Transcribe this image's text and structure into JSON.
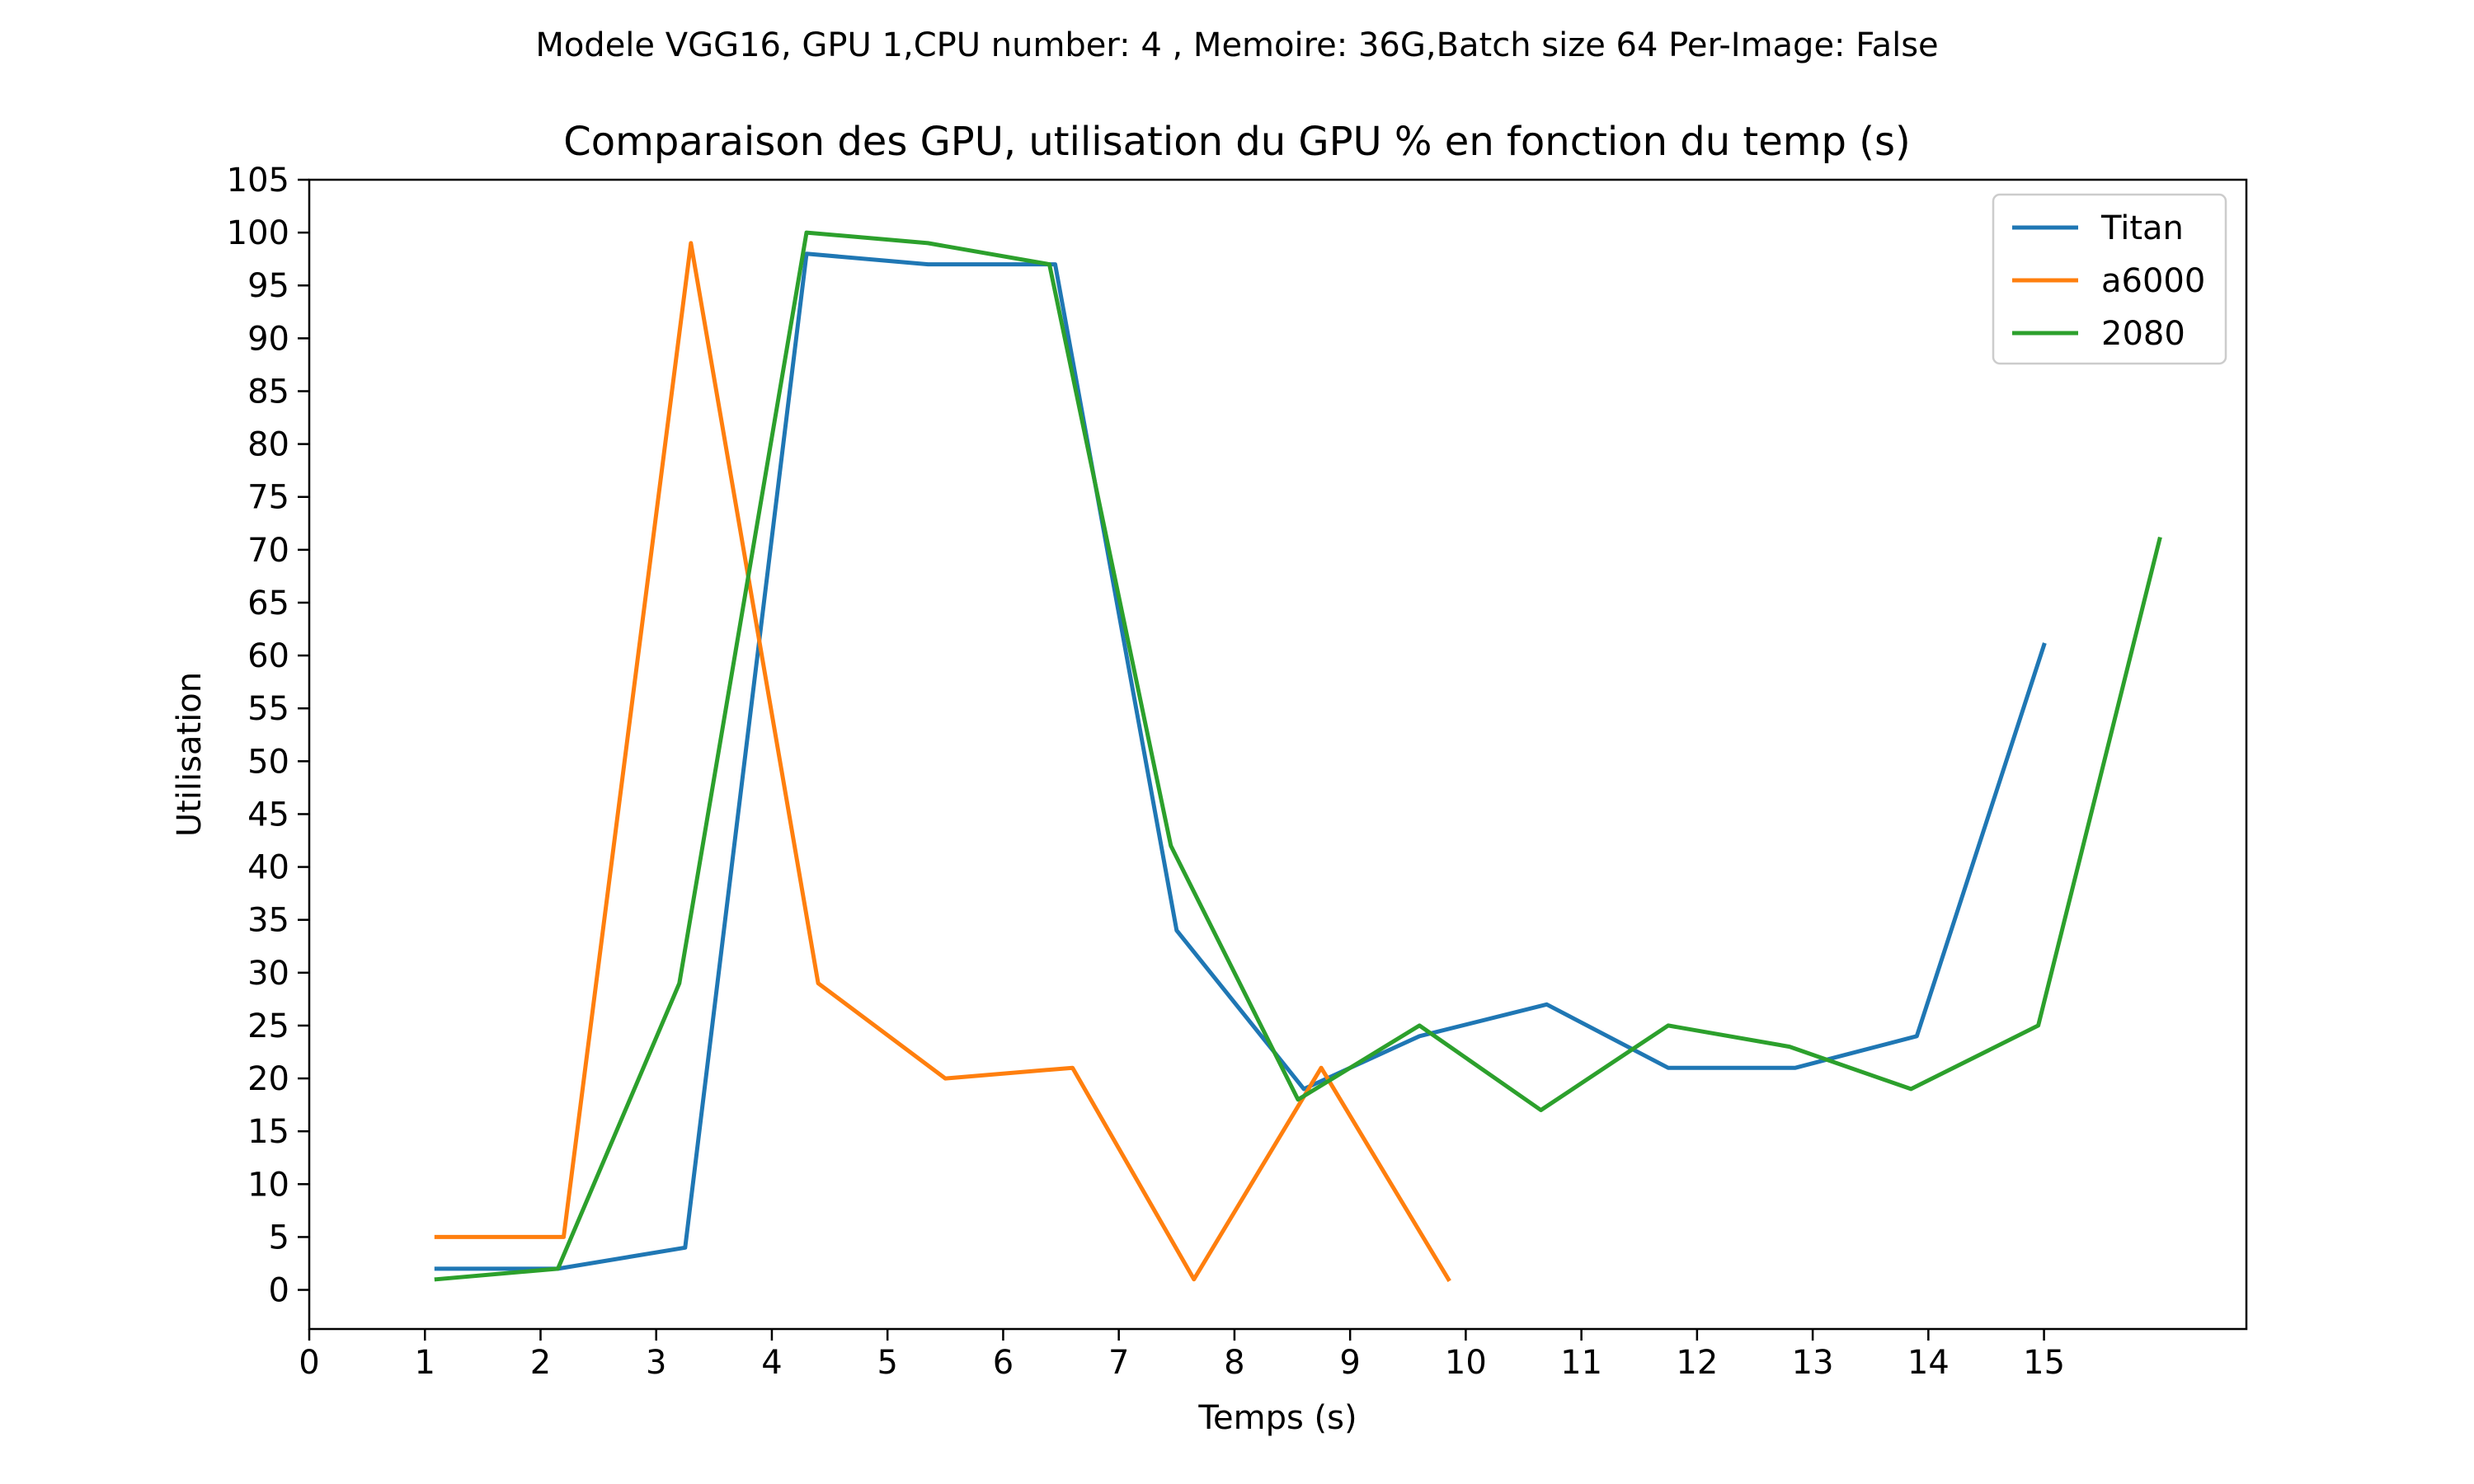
{
  "chart_data": {
    "type": "line",
    "suptitle": "Modele VGG16, GPU 1,CPU number: 4 , Memoire: 36G,Batch size 64 Per-Image: False",
    "title": "Comparaison des GPU, utilisation du GPU % en fonction du temp (s)",
    "xlabel": "Temps (s)",
    "ylabel": "Utilisation",
    "xlim": [
      0,
      16.75
    ],
    "ylim": [
      -3.7,
      105
    ],
    "xticks": [
      0,
      1,
      2,
      3,
      4,
      5,
      6,
      7,
      8,
      9,
      10,
      11,
      12,
      13,
      14,
      15
    ],
    "yticks": [
      0,
      5,
      10,
      15,
      20,
      25,
      30,
      35,
      40,
      45,
      50,
      55,
      60,
      65,
      70,
      75,
      80,
      85,
      90,
      95,
      100,
      105
    ],
    "grid": false,
    "legend_position": "top-right",
    "series": [
      {
        "name": "Titan",
        "color": "#1f77b4",
        "x": [
          1.1,
          2.15,
          3.25,
          4.3,
          5.35,
          6.45,
          7.5,
          8.6,
          9.6,
          10.7,
          11.75,
          12.85,
          13.9,
          15.0
        ],
        "y": [
          2,
          2,
          4,
          98,
          97,
          97,
          34,
          19,
          24,
          27,
          21,
          21,
          24,
          61
        ]
      },
      {
        "name": "a6000",
        "color": "#ff7f0e",
        "x": [
          1.1,
          2.2,
          3.3,
          4.4,
          5.5,
          6.6,
          7.65,
          8.75,
          9.85
        ],
        "y": [
          5,
          5,
          99,
          29,
          20,
          21,
          1,
          21,
          1
        ]
      },
      {
        "name": "2080",
        "color": "#2ca02c",
        "x": [
          1.1,
          2.15,
          3.2,
          4.3,
          5.35,
          6.4,
          7.45,
          8.55,
          9.6,
          10.65,
          11.75,
          12.8,
          13.85,
          14.95,
          16.0
        ],
        "y": [
          1,
          2,
          29,
          100,
          99,
          97,
          42,
          18,
          25,
          17,
          25,
          23,
          19,
          25,
          71
        ]
      }
    ]
  }
}
